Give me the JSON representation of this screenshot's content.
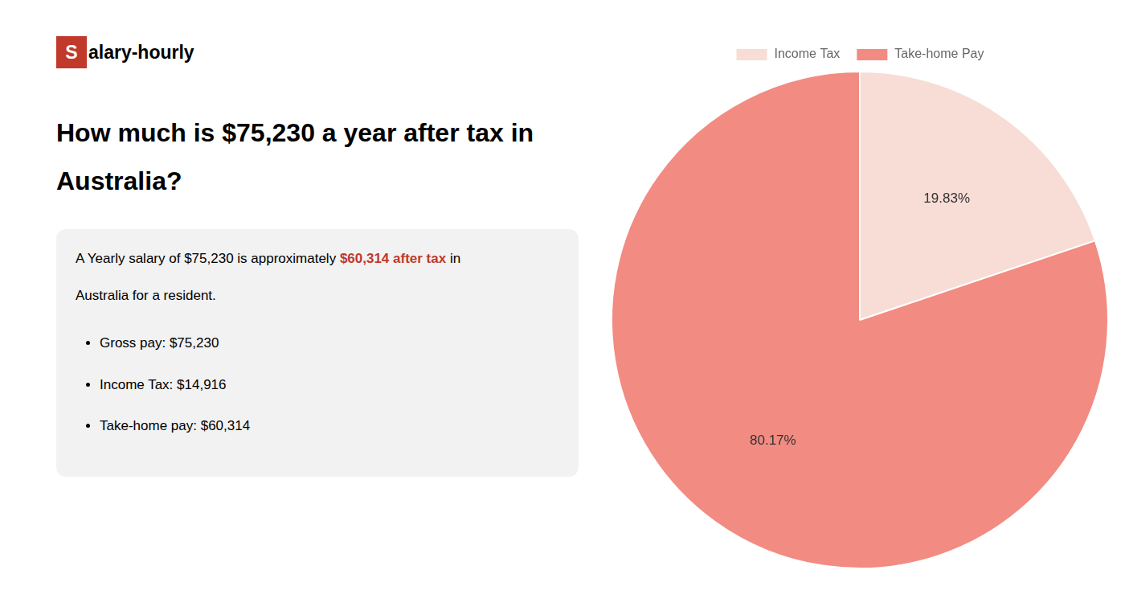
{
  "chart_data": {
    "type": "pie",
    "title": [
      "How much is $75,230 a year after tax in",
      "Australia?"
    ],
    "categories": [
      "Income Tax",
      "Take-home Pay"
    ],
    "values": [
      19.83,
      80.17
    ],
    "value_labels": [
      "19.83%",
      "80.17%"
    ],
    "data_labels": true,
    "colors": [
      "#f7ddd5",
      "#f28b82"
    ],
    "legend": "top",
    "annotations": [
      {
        "text": "S",
        "color": "#c0392b"
      },
      {
        "text": "alary-hourly"
      },
      {
        "text": "A Yearly salary of $75,230 is approximately "
      },
      {
        "text": "$60,314 after tax",
        "color": "#c0392b"
      },
      {
        "text": " in"
      },
      {
        "text": "Australia for a resident."
      },
      {
        "text": "Gross pay: $75,230"
      },
      {
        "text": "Income Tax: $14,916"
      },
      {
        "text": "Take-home pay: $60,314"
      }
    ]
  }
}
